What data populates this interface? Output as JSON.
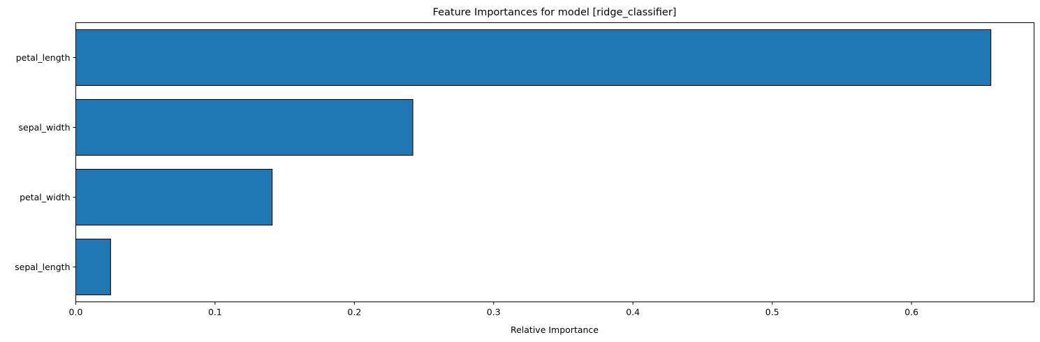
{
  "chart_data": {
    "type": "bar",
    "orientation": "horizontal",
    "title": "Feature Importances for model [ridge_classifier]",
    "xlabel": "Relative Importance",
    "ylabel": "",
    "categories": [
      "petal_length",
      "sepal_width",
      "petal_width",
      "sepal_length"
    ],
    "values": [
      0.657,
      0.242,
      0.141,
      0.025
    ],
    "xlim": [
      0,
      0.688
    ],
    "xticks": [
      0.0,
      0.1,
      0.2,
      0.3,
      0.4,
      0.5,
      0.6
    ],
    "xtick_labels": [
      "0.0",
      "0.1",
      "0.2",
      "0.3",
      "0.4",
      "0.5",
      "0.6"
    ],
    "bar_color": "#1f77b4",
    "edge_color": "#000000",
    "grid": false,
    "legend": null
  }
}
